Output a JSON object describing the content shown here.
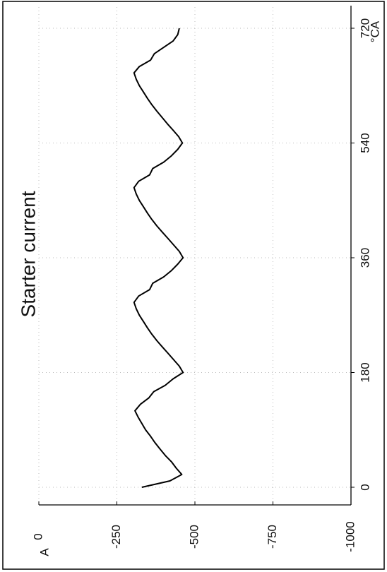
{
  "chart_data": {
    "type": "line",
    "title": "Starter current",
    "x_label": "°CA",
    "y_label": "A",
    "x": [
      0,
      10,
      20,
      30,
      40,
      50,
      60,
      70,
      80,
      90,
      100,
      110,
      120,
      130,
      140,
      150,
      160,
      170,
      180,
      190,
      200,
      210,
      220,
      230,
      240,
      250,
      260,
      270,
      280,
      290,
      300,
      310,
      320,
      330,
      340,
      350,
      360,
      370,
      380,
      390,
      400,
      410,
      420,
      430,
      440,
      450,
      460,
      470,
      480,
      490,
      500,
      510,
      520,
      530,
      540,
      550,
      560,
      570,
      580,
      590,
      600,
      610,
      620,
      630,
      640,
      650,
      660,
      670,
      680,
      690,
      700,
      710,
      720
    ],
    "values": [
      -330,
      -420,
      -458,
      -440,
      -425,
      -405,
      -388,
      -372,
      -358,
      -342,
      -330,
      -318,
      -308,
      -325,
      -352,
      -368,
      -405,
      -430,
      -462,
      -450,
      -432,
      -414,
      -396,
      -378,
      -362,
      -348,
      -335,
      -322,
      -312,
      -305,
      -320,
      -355,
      -365,
      -400,
      -425,
      -445,
      -462,
      -450,
      -432,
      -414,
      -396,
      -378,
      -362,
      -348,
      -335,
      -322,
      -312,
      -305,
      -320,
      -355,
      -365,
      -400,
      -425,
      -445,
      -460,
      -448,
      -430,
      -412,
      -395,
      -378,
      -362,
      -348,
      -335,
      -322,
      -312,
      -305,
      -322,
      -358,
      -370,
      -400,
      -430,
      -445,
      -450
    ],
    "color": "#000000",
    "xlim": [
      0,
      720
    ],
    "xticks": [
      0,
      180,
      360,
      540,
      720
    ],
    "ylim": [
      0,
      -1000
    ],
    "yticks": [
      0,
      -250,
      -500,
      -750,
      -1000
    ],
    "grid": true
  }
}
